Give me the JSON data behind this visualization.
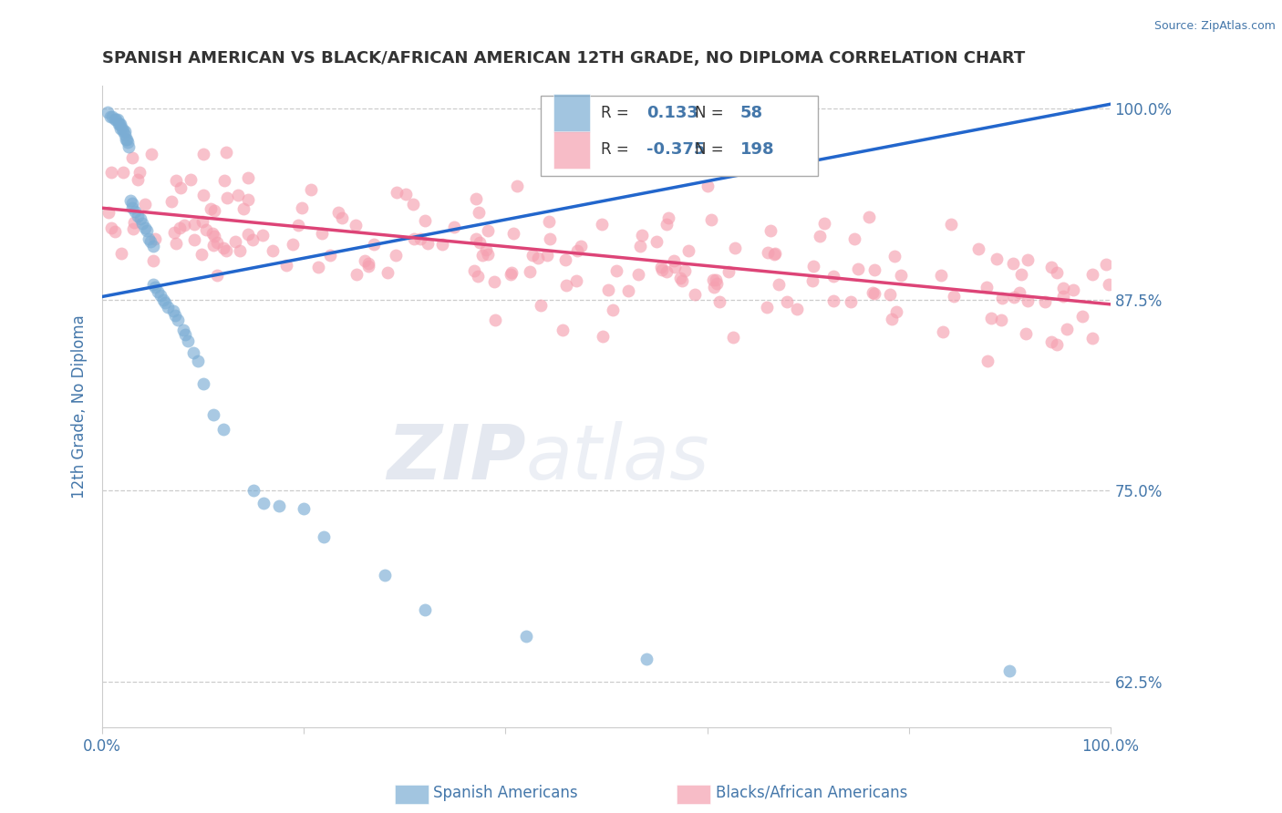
{
  "title": "SPANISH AMERICAN VS BLACK/AFRICAN AMERICAN 12TH GRADE, NO DIPLOMA CORRELATION CHART",
  "source": "Source: ZipAtlas.com",
  "ylabel": "12th Grade, No Diploma",
  "xlim": [
    0.0,
    1.0
  ],
  "ylim": [
    0.595,
    1.015
  ],
  "yticks": [
    0.625,
    0.75,
    0.875,
    1.0
  ],
  "ytick_labels": [
    "62.5%",
    "75.0%",
    "87.5%",
    "100.0%"
  ],
  "blue_R": 0.133,
  "blue_N": 58,
  "pink_R": -0.375,
  "pink_N": 198,
  "legend_label_blue": "Spanish Americans",
  "legend_label_pink": "Blacks/African Americans",
  "blue_color": "#7BADD4",
  "pink_color": "#F5A0B0",
  "blue_line_color": "#2266CC",
  "pink_line_color": "#DD4477",
  "background_color": "#FFFFFF",
  "grid_color": "#CCCCCC",
  "title_color": "#333333",
  "axis_color": "#4477AA",
  "blue_line_x0": 0.0,
  "blue_line_y0": 0.877,
  "blue_line_x1": 1.0,
  "blue_line_y1": 1.003,
  "pink_line_x0": 0.0,
  "pink_line_y0": 0.935,
  "pink_line_x1": 1.0,
  "pink_line_y1": 0.872,
  "blue_scatter_x": [
    0.005,
    0.008,
    0.01,
    0.012,
    0.013,
    0.015,
    0.016,
    0.017,
    0.018,
    0.018,
    0.02,
    0.021,
    0.022,
    0.022,
    0.023,
    0.024,
    0.025,
    0.026,
    0.028,
    0.03,
    0.03,
    0.032,
    0.035,
    0.038,
    0.04,
    0.042,
    0.044,
    0.046,
    0.048,
    0.05,
    0.05,
    0.052,
    0.055,
    0.058,
    0.06,
    0.062,
    0.065,
    0.07,
    0.072,
    0.075,
    0.08,
    0.082,
    0.085,
    0.09,
    0.095,
    0.1,
    0.11,
    0.12,
    0.15,
    0.16,
    0.175,
    0.2,
    0.22,
    0.28,
    0.32,
    0.42,
    0.54,
    0.9
  ],
  "blue_scatter_y": [
    0.998,
    0.995,
    0.995,
    0.993,
    0.993,
    0.993,
    0.99,
    0.99,
    0.99,
    0.987,
    0.987,
    0.985,
    0.985,
    0.983,
    0.98,
    0.98,
    0.978,
    0.975,
    0.94,
    0.938,
    0.935,
    0.933,
    0.93,
    0.928,
    0.925,
    0.922,
    0.92,
    0.915,
    0.913,
    0.91,
    0.885,
    0.883,
    0.88,
    0.878,
    0.875,
    0.873,
    0.87,
    0.868,
    0.865,
    0.862,
    0.855,
    0.852,
    0.848,
    0.84,
    0.835,
    0.82,
    0.8,
    0.79,
    0.75,
    0.742,
    0.74,
    0.738,
    0.72,
    0.695,
    0.672,
    0.655,
    0.64,
    0.632
  ],
  "pink_scatter_seed": 12345
}
